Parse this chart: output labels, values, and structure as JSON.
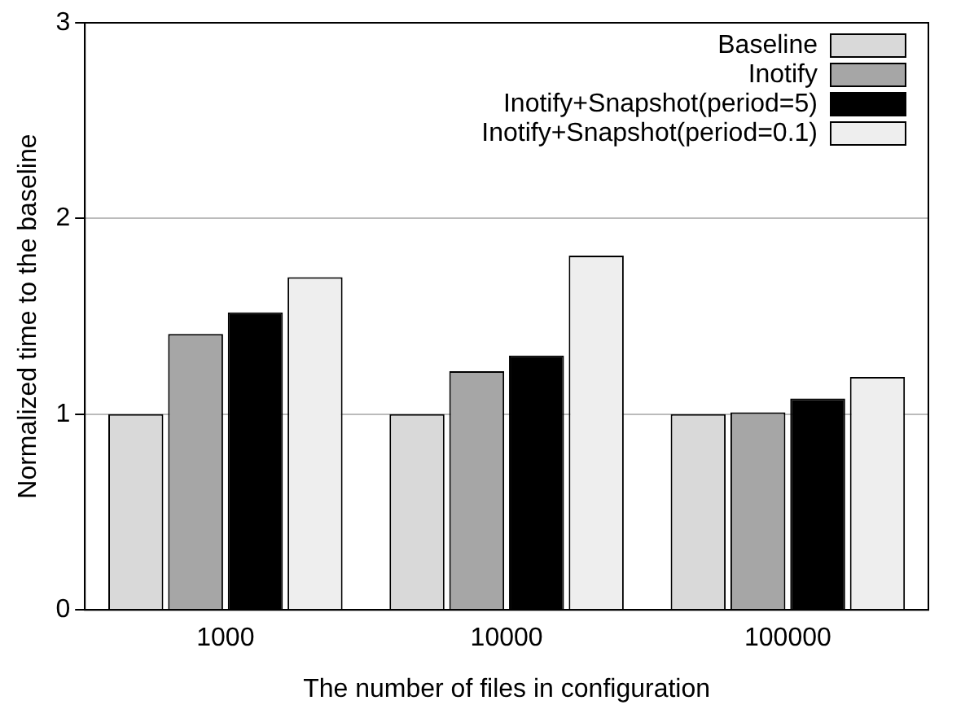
{
  "chart_data": {
    "type": "bar",
    "xlabel": "The number of files in configuration",
    "ylabel": "Normalized time to the baseline",
    "categories": [
      "1000",
      "10000",
      "100000"
    ],
    "series": [
      {
        "name": "Baseline",
        "color": "#d9d9d9",
        "values": [
          1,
          1,
          1
        ]
      },
      {
        "name": "Inotify",
        "color": "#a6a6a6",
        "values": [
          1.41,
          1.22,
          1.01
        ]
      },
      {
        "name": "Inotify+Snapshot(period=5)",
        "color": "#000000",
        "values": [
          1.52,
          1.3,
          1.08
        ]
      },
      {
        "name": "Inotify+Snapshot(period=0.1)",
        "color": "#eeeeee",
        "values": [
          1.7,
          1.81,
          1.19
        ]
      }
    ],
    "ylim": [
      0,
      3
    ],
    "yticks": [
      0,
      1,
      2,
      3
    ],
    "grid": "y",
    "legend": "top right"
  }
}
